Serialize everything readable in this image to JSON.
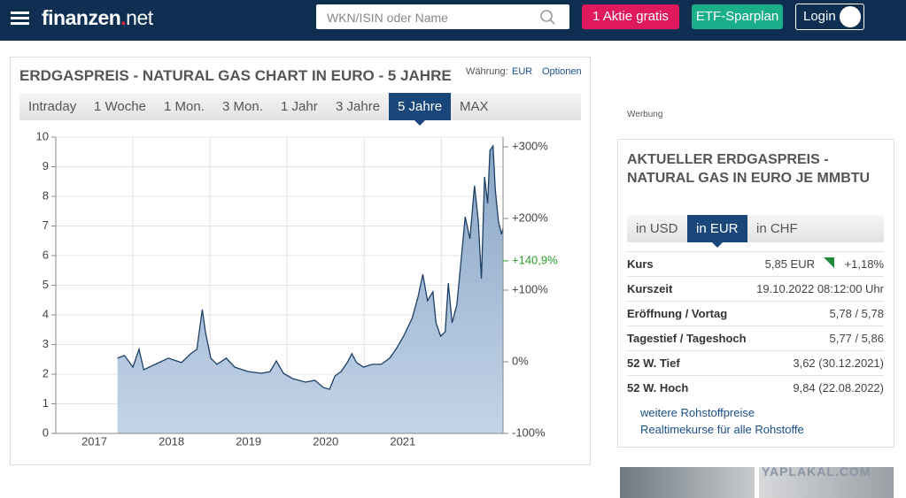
{
  "header": {
    "logo_main": "finanzen",
    "logo_dot": ".",
    "logo_net": "net",
    "search_placeholder": "WKN/ISIN oder Name",
    "buttons": [
      "1 Aktie gratis",
      "ETF-Sparplan"
    ],
    "login": "Login"
  },
  "chart_panel": {
    "title": "ERDGASPREIS - NATURAL GAS CHART IN EURO - 5 JAHRE",
    "currency_label": "Währung:",
    "currency": "EUR",
    "options": "Optionen",
    "tabs": [
      "Intraday",
      "1 Woche",
      "1 Mon.",
      "3 Mon.",
      "1 Jahr",
      "3 Jahre",
      "5 Jahre",
      "MAX"
    ],
    "active_tab": 6
  },
  "chart_data": {
    "type": "area",
    "color": "#1c3f66",
    "fill": "#a3bbd6",
    "grid": true,
    "x": [
      2017.8,
      2017.89,
      2018.0,
      2018.08,
      2018.14,
      2018.29,
      2018.46,
      2018.63,
      2018.75,
      2018.83,
      2018.9,
      2018.94,
      2019.01,
      2019.09,
      2019.21,
      2019.32,
      2019.49,
      2019.67,
      2019.78,
      2019.86,
      2019.95,
      2020.07,
      2020.24,
      2020.36,
      2020.47,
      2020.55,
      2020.62,
      2020.7,
      2020.78,
      2020.84,
      2020.9,
      2020.99,
      2021.1,
      2021.22,
      2021.33,
      2021.41,
      2021.51,
      2021.62,
      2021.7,
      2021.76,
      2021.82,
      2021.89,
      2021.93,
      2021.99,
      2022.05,
      2022.09,
      2022.14,
      2022.2,
      2022.25,
      2022.31,
      2022.37,
      2022.43,
      2022.48,
      2022.52,
      2022.56,
      2022.6,
      2022.63,
      2022.67,
      2022.7,
      2022.74,
      2022.78,
      2022.8
    ],
    "values": [
      2.54,
      2.63,
      2.24,
      2.84,
      2.15,
      2.33,
      2.54,
      2.39,
      2.69,
      2.84,
      4.18,
      3.43,
      2.54,
      2.33,
      2.54,
      2.24,
      2.09,
      2.03,
      2.09,
      2.45,
      2.03,
      1.85,
      1.73,
      1.79,
      1.55,
      1.49,
      1.94,
      2.09,
      2.39,
      2.69,
      2.39,
      2.24,
      2.33,
      2.33,
      2.54,
      2.84,
      3.28,
      3.88,
      4.63,
      5.37,
      4.48,
      4.78,
      3.73,
      3.28,
      3.43,
      5.07,
      3.73,
      4.33,
      5.67,
      7.31,
      6.57,
      8.36,
      7.16,
      5.22,
      8.66,
      7.76,
      9.55,
      9.7,
      8.21,
      7.16,
      6.72,
      6.93
    ],
    "xlim": [
      2017,
      2022.8
    ],
    "xticks": [
      {
        "value": 2017.5,
        "label": "2017"
      },
      {
        "value": 2018.5,
        "label": "2018"
      },
      {
        "value": 2019.5,
        "label": "2019"
      },
      {
        "value": 2020.5,
        "label": "2020"
      },
      {
        "value": 2021.5,
        "label": "2021"
      }
    ],
    "xgrid": [
      2018,
      2019,
      2020,
      2021,
      2022
    ],
    "ylim": [
      0,
      10
    ],
    "yticks": [
      0,
      1,
      2,
      3,
      4,
      5,
      6,
      7,
      8,
      9,
      10
    ],
    "y2lim": [
      -100,
      313.6
    ],
    "y2ticks": [
      {
        "value": -100,
        "label": "-100%"
      },
      {
        "value": 0,
        "label": "0%"
      },
      {
        "value": 100,
        "label": "+100%"
      },
      {
        "value": 200,
        "label": "+200%"
      },
      {
        "value": 300,
        "label": "+300%"
      }
    ],
    "current_change": {
      "value": 140.9,
      "label": "+140,9%",
      "axis": "y2",
      "color": "#2a9d2a"
    }
  },
  "sidebar": {
    "ad_label": "Werbung",
    "title": "AKTUELLER ERDGASPREIS - NATURAL GAS IN EURO JE MMBTU",
    "tabs": [
      "in USD",
      "in EUR",
      "in CHF"
    ],
    "active_tab": 1,
    "rows": [
      [
        "Kurs",
        "5,85 EUR",
        "+1,18%"
      ],
      [
        "Kurszeit",
        "19.10.2022 08:12:00 Uhr"
      ],
      [
        "Eröffnung / Vortag",
        "5,78 / 5,78"
      ],
      [
        "Tagestief / Tageshoch",
        "5,77 / 5,86"
      ],
      [
        "52 W. Tief",
        "3,62 (30.12.2021)"
      ],
      [
        "52 W. Hoch",
        "9,84 (22.08.2022)"
      ]
    ],
    "links": [
      "weitere Rohstoffpreise",
      "Realtimekurse für alle Rohstoffe"
    ]
  },
  "ad_banner": {
    "watermark": "YAPLAKAL.COM"
  }
}
